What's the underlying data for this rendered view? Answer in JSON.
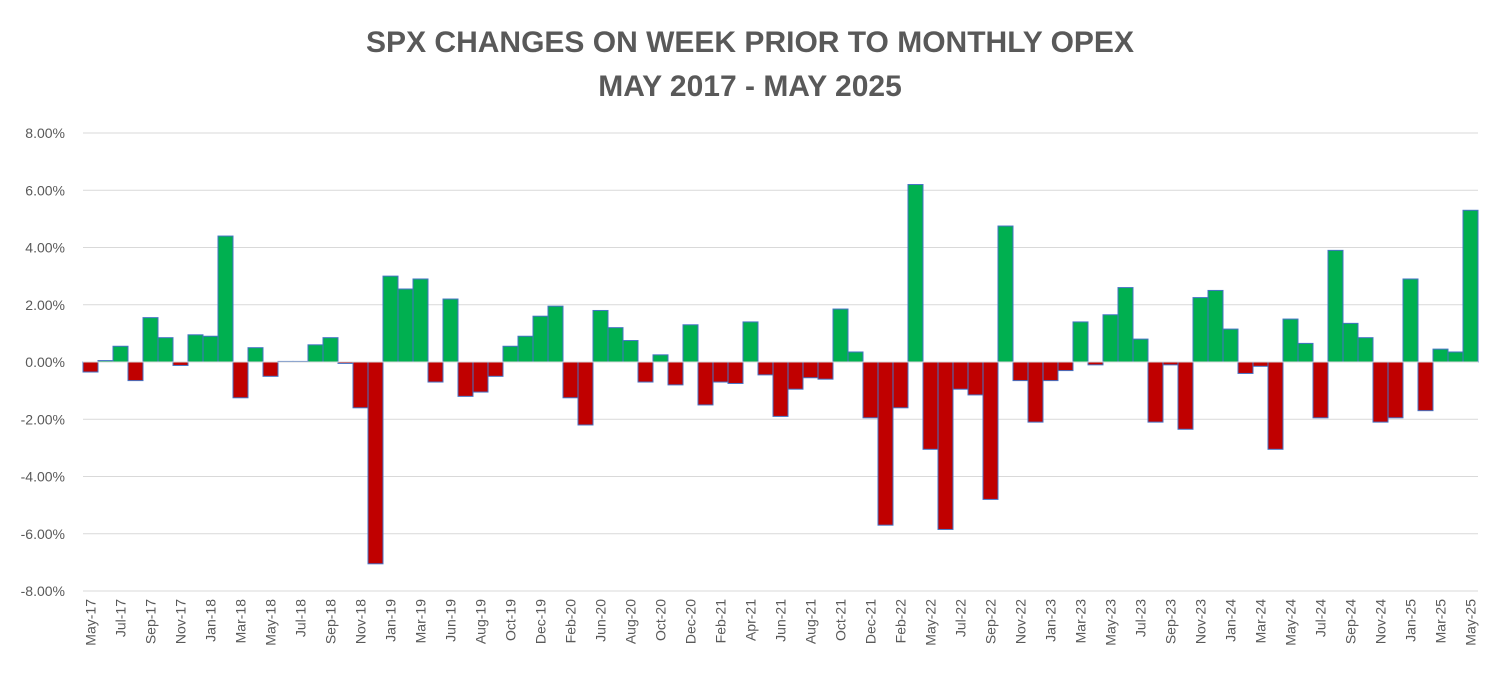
{
  "chart_data": {
    "type": "bar",
    "title": "SPX CHANGES ON WEEK PRIOR TO MONTHLY OPEX",
    "subtitle": "MAY 2017 - MAY 2025",
    "categories": [
      "May-17",
      null,
      "Jul-17",
      null,
      "Sep-17",
      null,
      "Nov-17",
      null,
      "Jan-18",
      null,
      "Mar-18",
      null,
      "May-18",
      null,
      "Jul-18",
      null,
      "Sep-18",
      null,
      "Nov-18",
      null,
      "Jan-19",
      null,
      "Mar-19",
      null,
      "Jun-19",
      null,
      "Aug-19",
      null,
      "Oct-19",
      null,
      "Dec-19",
      null,
      "Feb-20",
      null,
      "Jun-20",
      null,
      "Aug-20",
      null,
      "Oct-20",
      null,
      "Dec-20",
      null,
      "Feb-21",
      null,
      "Apr-21",
      null,
      "Jun-21",
      null,
      "Aug-21",
      null,
      "Oct-21",
      null,
      "Dec-21",
      null,
      "Feb-22",
      null,
      "May-22",
      null,
      "Jul-22",
      null,
      "Sep-22",
      null,
      "Nov-22",
      null,
      "Jan-23",
      null,
      "Mar-23",
      null,
      "May-23",
      null,
      "Jul-23",
      null,
      "Sep-23",
      null,
      "Nov-23",
      null,
      "Jan-24",
      null,
      "Mar-24",
      null,
      "May-24",
      null,
      "Jul-24",
      null,
      "Sep-24",
      null,
      "Nov-24",
      null,
      "Jan-25",
      null,
      "Mar-25",
      null,
      "May-25"
    ],
    "values": [
      -0.35,
      0.05,
      0.55,
      -0.65,
      1.55,
      0.85,
      -0.12,
      0.95,
      0.9,
      4.4,
      -1.25,
      0.5,
      -0.5,
      0.02,
      0.02,
      0.6,
      0.85,
      -0.05,
      -1.6,
      -7.05,
      3.0,
      2.55,
      2.9,
      -0.7,
      2.2,
      -1.2,
      -1.05,
      -0.5,
      0.55,
      0.9,
      1.6,
      1.95,
      -1.25,
      -2.2,
      1.8,
      1.2,
      0.75,
      -0.7,
      0.25,
      -0.8,
      1.3,
      -1.5,
      -0.7,
      -0.75,
      1.4,
      -0.45,
      -1.9,
      -0.95,
      -0.55,
      -0.6,
      1.85,
      0.35,
      -1.95,
      -5.7,
      -1.6,
      6.2,
      -3.05,
      -5.85,
      -0.95,
      -1.15,
      -4.8,
      4.75,
      -0.65,
      -2.1,
      -0.65,
      -0.3,
      1.4,
      -0.1,
      1.65,
      2.6,
      0.8,
      -2.1,
      -0.1,
      -2.35,
      2.25,
      2.5,
      1.15,
      -0.4,
      -0.15,
      -3.05,
      1.5,
      0.65,
      -1.95,
      3.9,
      1.35,
      0.85,
      -2.1,
      -1.95,
      2.9,
      -1.7,
      0.45,
      0.35,
      5.3
    ],
    "positive_color": "#00b050",
    "negative_color": "#c00000",
    "edge_color": "#4472c4",
    "ylim": [
      -8,
      8
    ],
    "yticks": [
      {
        "value": -8,
        "label": "-8.00%"
      },
      {
        "value": -6,
        "label": "-6.00%"
      },
      {
        "value": -4,
        "label": "-4.00%"
      },
      {
        "value": -2,
        "label": "-2.00%"
      },
      {
        "value": 0,
        "label": "0.00%"
      },
      {
        "value": 2,
        "label": "2.00%"
      },
      {
        "value": 4,
        "label": "4.00%"
      },
      {
        "value": 6,
        "label": "6.00%"
      },
      {
        "value": 8,
        "label": "8.00%"
      }
    ],
    "grid": true
  }
}
